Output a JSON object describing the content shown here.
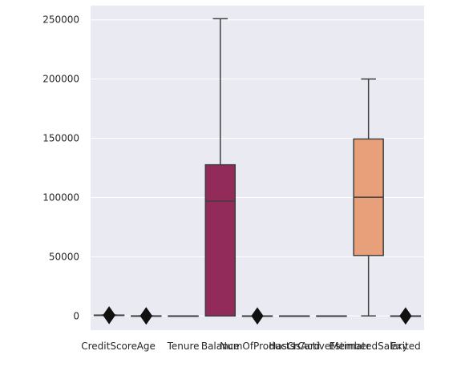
{
  "chart_data": {
    "type": "box",
    "title": "",
    "xlabel": "",
    "ylabel": "",
    "ylim": [
      -12000,
      262000
    ],
    "y_ticks": [
      0,
      50000,
      100000,
      150000,
      200000,
      250000
    ],
    "y_tick_labels": [
      "0",
      "50000",
      "100000",
      "150000",
      "200000",
      "250000"
    ],
    "grid": true,
    "categories": [
      "CreditScore",
      "Age",
      "Tenure",
      "Balance",
      "NumOfProducts",
      "HasCrCard",
      "IsActiveMember",
      "EstimatedSalary",
      "Exited"
    ],
    "boxes": [
      {
        "category": "CreditScore",
        "min": 350,
        "q1": 584,
        "median": 652,
        "q3": 718,
        "max": 850,
        "outliers": [
          350,
          850
        ],
        "color": "#2e1e3c"
      },
      {
        "category": "Age",
        "min": 18,
        "q1": 32,
        "median": 37,
        "q3": 44,
        "max": 92,
        "outliers": [
          18,
          92
        ],
        "color": "#3b1f4f"
      },
      {
        "category": "Tenure",
        "min": 0,
        "q1": 3,
        "median": 5,
        "q3": 7,
        "max": 10,
        "outliers": [],
        "color": "#5a1f5e"
      },
      {
        "category": "Balance",
        "min": 0,
        "q1": 0,
        "median": 97000,
        "q3": 127600,
        "max": 250900,
        "outliers": [],
        "color": "#922a5a"
      },
      {
        "category": "NumOfProducts",
        "min": 1,
        "q1": 1,
        "median": 1,
        "q3": 2,
        "max": 4,
        "outliers": [
          4
        ],
        "color": "#bb3754"
      },
      {
        "category": "HasCrCard",
        "min": 0,
        "q1": 0,
        "median": 1,
        "q3": 1,
        "max": 1,
        "outliers": [],
        "color": "#d8494f"
      },
      {
        "category": "IsActiveMember",
        "min": 0,
        "q1": 0,
        "median": 1,
        "q3": 1,
        "max": 1,
        "outliers": [],
        "color": "#e5765a"
      },
      {
        "category": "EstimatedSalary",
        "min": 12,
        "q1": 51000,
        "median": 100200,
        "q3": 149400,
        "max": 200000,
        "outliers": [],
        "color": "#e8a07a"
      },
      {
        "category": "Exited",
        "min": 0,
        "q1": 0,
        "median": 0,
        "q3": 0,
        "max": 0,
        "outliers": [
          1
        ],
        "color": "#efc9a6"
      }
    ]
  }
}
